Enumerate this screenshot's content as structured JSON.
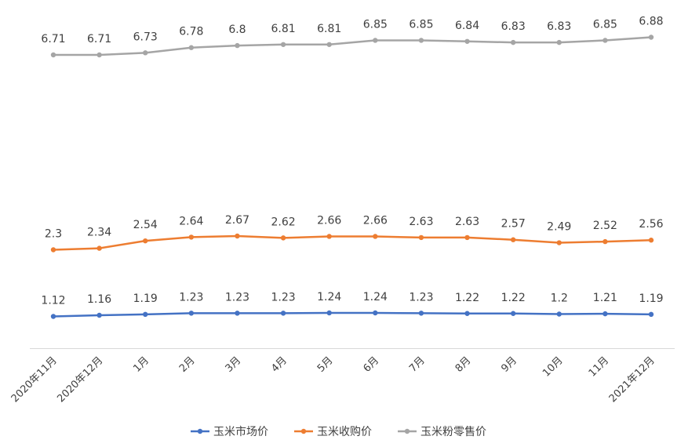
{
  "chart_data": {
    "type": "line",
    "categories": [
      "2020年11月",
      "2020年12月",
      "1月",
      "2月",
      "3月",
      "4月",
      "5月",
      "6月",
      "7月",
      "8月",
      "9月",
      "10月",
      "11月",
      "2021年12月"
    ],
    "series": [
      {
        "name": "玉米市场价",
        "color": "#4472C4",
        "values": [
          1.12,
          1.16,
          1.19,
          1.23,
          1.23,
          1.23,
          1.24,
          1.24,
          1.23,
          1.22,
          1.22,
          1.2,
          1.21,
          1.19
        ]
      },
      {
        "name": "玉米收购价",
        "color": "#ED7D31",
        "values": [
          2.3,
          2.34,
          2.54,
          2.64,
          2.67,
          2.62,
          2.66,
          2.66,
          2.63,
          2.63,
          2.57,
          2.49,
          2.52,
          2.56
        ]
      },
      {
        "name": "玉米粉零售价",
        "color": "#A5A5A5",
        "values": [
          6.71,
          6.71,
          6.73,
          6.78,
          6.8,
          6.81,
          6.81,
          6.85,
          6.85,
          6.84,
          6.83,
          6.83,
          6.85,
          6.88
        ]
      }
    ],
    "data_labels": true,
    "axes_visible": false,
    "grid": false,
    "legend_position": "bottom"
  }
}
